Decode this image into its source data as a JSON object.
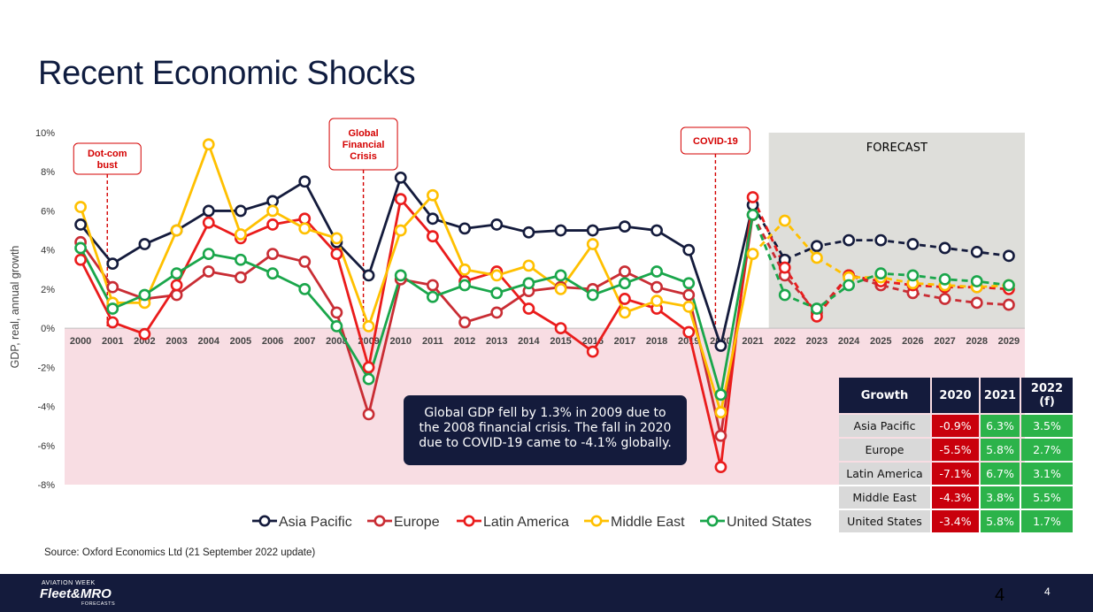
{
  "slide": {
    "title": "Recent Economic Shocks",
    "source": "Source: Oxford Economics Ltd (21 September 2022 update)",
    "callout": "Global GDP fell by 1.3% in 2009 due to the 2008 financial crisis. The fall in 2020 due to COVID-19 came to -4.1% globally.",
    "page_number": "4",
    "page_number_overlay": "4",
    "logo": {
      "top": "AVIATION WEEK",
      "main": "Fleet&MRO",
      "sub": "FORECASTS"
    }
  },
  "table": {
    "headers": [
      "Growth",
      "2020",
      "2021",
      "2022 (f)"
    ],
    "rows": [
      {
        "region": "Asia Pacific",
        "v2020": "-0.9%",
        "v2021": "6.3%",
        "v2022": "3.5%"
      },
      {
        "region": "Europe",
        "v2020": "-5.5%",
        "v2021": "5.8%",
        "v2022": "2.7%"
      },
      {
        "region": "Latin America",
        "v2020": "-7.1%",
        "v2021": "6.7%",
        "v2022": "3.1%"
      },
      {
        "region": "Middle East",
        "v2020": "-4.3%",
        "v2021": "3.8%",
        "v2022": "5.5%"
      },
      {
        "region": "United States",
        "v2020": "-3.4%",
        "v2021": "5.8%",
        "v2022": "1.7%"
      }
    ]
  },
  "chart_data": {
    "type": "line",
    "title": "",
    "xlabel": "",
    "ylabel": "GDP, real, annual growth",
    "ylim": [
      -8,
      10
    ],
    "yticks": [
      10,
      8,
      6,
      4,
      2,
      0,
      -2,
      -4,
      -6,
      -8
    ],
    "ytick_labels": [
      "10%",
      "8%",
      "6%",
      "4%",
      "2%",
      "0%",
      "-2%",
      "-4%",
      "-6%",
      "-8%"
    ],
    "x": [
      "2000",
      "2001",
      "2002",
      "2003",
      "2004",
      "2005",
      "2006",
      "2007",
      "2008",
      "2009",
      "2010",
      "2011",
      "2012",
      "2013",
      "2014",
      "2015",
      "2016",
      "2017",
      "2018",
      "2019",
      "2020",
      "2021",
      "2022",
      "2023",
      "2024",
      "2025",
      "2026",
      "2027",
      "2028",
      "2029"
    ],
    "forecast_start": "2022",
    "forecast_label": "FORECAST",
    "negative_region_color": "#f8dde3",
    "forecast_region_color": "#dededa",
    "legend_position": "bottom",
    "annotations": [
      {
        "text": "Dot-com bust",
        "x": "2001"
      },
      {
        "text": "Global Financial Crisis",
        "x": "2009"
      },
      {
        "text": "COVID-19",
        "x": "2020"
      }
    ],
    "series": [
      {
        "name": "Asia Pacific",
        "color": "#141b3c",
        "values": [
          5.3,
          3.3,
          4.3,
          5.0,
          6.0,
          6.0,
          6.5,
          7.5,
          4.4,
          2.7,
          7.7,
          5.6,
          5.1,
          5.3,
          4.9,
          5.0,
          5.0,
          5.2,
          5.0,
          4.0,
          -0.9,
          6.3,
          3.5,
          4.2,
          4.5,
          4.5,
          4.3,
          4.1,
          3.9,
          3.7
        ]
      },
      {
        "name": "Europe",
        "color": "#c92d34",
        "values": [
          4.4,
          2.1,
          1.5,
          1.7,
          2.9,
          2.6,
          3.8,
          3.4,
          0.8,
          -4.4,
          2.5,
          2.2,
          0.3,
          0.8,
          1.9,
          2.1,
          2.0,
          2.9,
          2.1,
          1.7,
          -5.5,
          5.8,
          2.7,
          0.8,
          2.7,
          2.2,
          1.8,
          1.5,
          1.3,
          1.2
        ]
      },
      {
        "name": "Latin America",
        "color": "#ea1c1c",
        "values": [
          3.5,
          0.3,
          -0.3,
          2.2,
          5.4,
          4.6,
          5.3,
          5.6,
          3.8,
          -2.0,
          6.6,
          4.7,
          2.4,
          2.9,
          1.0,
          0.0,
          -1.2,
          1.5,
          1.0,
          -0.2,
          -7.1,
          6.7,
          3.1,
          0.6,
          2.7,
          2.4,
          2.2,
          2.1,
          2.1,
          2.0
        ]
      },
      {
        "name": "Middle East",
        "color": "#ffc000",
        "values": [
          6.2,
          1.3,
          1.3,
          5.0,
          9.4,
          4.8,
          6.0,
          5.1,
          4.6,
          0.1,
          5.0,
          6.8,
          3.0,
          2.7,
          3.2,
          2.0,
          4.3,
          0.8,
          1.4,
          1.1,
          -4.3,
          3.8,
          5.5,
          3.6,
          2.6,
          2.6,
          2.3,
          2.2,
          2.1,
          2.2
        ]
      },
      {
        "name": "United States",
        "color": "#1aa64b",
        "values": [
          4.1,
          1.0,
          1.7,
          2.8,
          3.8,
          3.5,
          2.8,
          2.0,
          0.1,
          -2.6,
          2.7,
          1.6,
          2.2,
          1.8,
          2.3,
          2.7,
          1.7,
          2.3,
          2.9,
          2.3,
          -3.4,
          5.8,
          1.7,
          1.0,
          2.2,
          2.8,
          2.7,
          2.5,
          2.4,
          2.2
        ]
      }
    ]
  }
}
